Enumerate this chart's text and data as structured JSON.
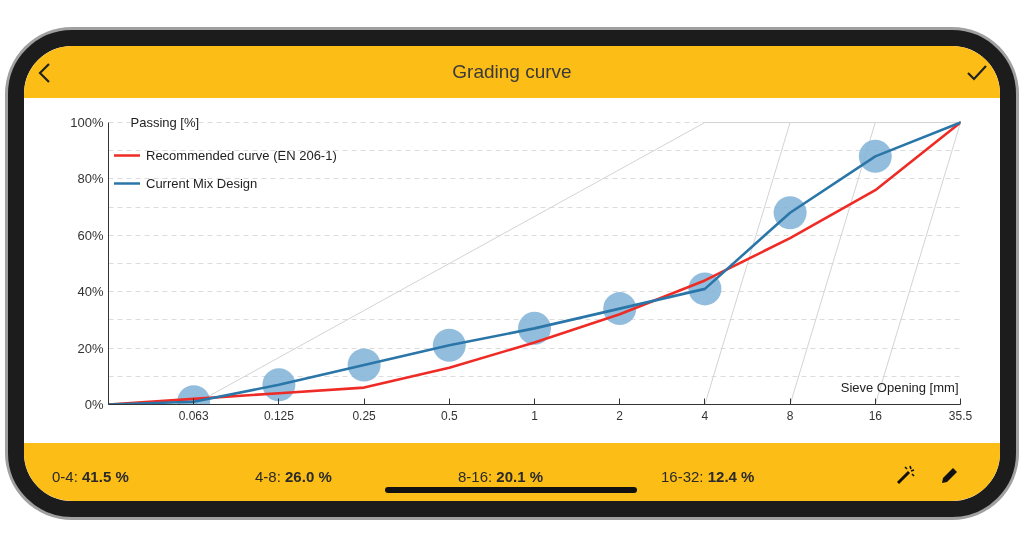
{
  "chart_data": {
    "type": "line",
    "title": "Grading curve",
    "xlabel": "Sieve Opening [mm]",
    "ylabel": "Passing [%]",
    "categories": [
      null,
      "0.063",
      "0.125",
      "0.25",
      "0.5",
      "1",
      "2",
      "4",
      "8",
      "16",
      "35.5"
    ],
    "ylim": [
      0,
      100
    ],
    "yticks": [
      {
        "value": 0,
        "label": "0%"
      },
      {
        "value": 10,
        "label": null
      },
      {
        "value": 20,
        "label": "20%"
      },
      {
        "value": 30,
        "label": null
      },
      {
        "value": 40,
        "label": "40%"
      },
      {
        "value": 50,
        "label": null
      },
      {
        "value": 60,
        "label": "60%"
      },
      {
        "value": 70,
        "label": null
      },
      {
        "value": 80,
        "label": "80%"
      },
      {
        "value": 90,
        "label": null
      },
      {
        "value": 100,
        "label": "100%"
      }
    ],
    "grid": "y",
    "legend": "top left",
    "series": [
      {
        "type": "line",
        "color": "#d3d3d3",
        "x": [
          "0.063",
          "4",
          "35.5"
        ],
        "values": [
          0,
          100,
          100
        ]
      },
      {
        "type": "line",
        "color": "#d3d3d3",
        "x": [
          "4",
          "8"
        ],
        "values": [
          0,
          100
        ]
      },
      {
        "type": "line",
        "color": "#d3d3d3",
        "x": [
          "8",
          "16"
        ],
        "values": [
          0,
          100
        ]
      },
      {
        "type": "line",
        "color": "#d3d3d3",
        "x": [
          "16",
          "35.5"
        ],
        "values": [
          0,
          100
        ]
      },
      {
        "type": "scatter",
        "marker": "circle",
        "color": "#80b1d6",
        "values": [
          null,
          1,
          7,
          14,
          21,
          27,
          34,
          41,
          68,
          88,
          null
        ]
      },
      {
        "name": "Recommended curve (EN 206-1)",
        "color": "#ee2b25",
        "values": [
          0,
          2,
          4,
          6,
          13,
          22,
          32,
          44,
          59,
          76,
          100
        ]
      },
      {
        "name": "Current Mix Design",
        "color": "#2b76a8",
        "values": [
          0,
          1,
          7,
          14,
          21,
          27,
          34,
          41,
          68,
          88,
          100
        ]
      }
    ],
    "annotations": [
      "0-4: 41.5 %",
      "4-8: 26.0 %",
      "8-16: 20.1 %",
      "16-32: 12.4 %"
    ]
  }
}
